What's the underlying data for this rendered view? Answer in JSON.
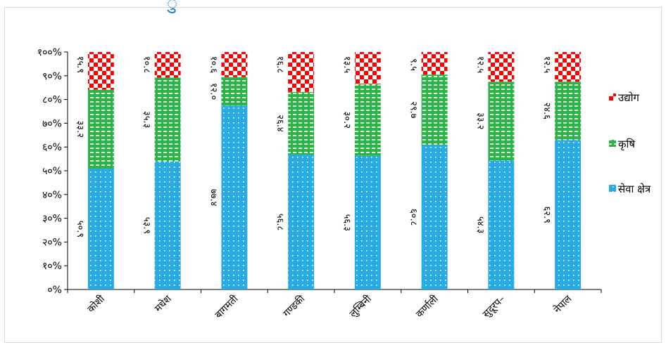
{
  "chart_data": {
    "type": "bar",
    "stacked": true,
    "percent": true,
    "categories": [
      "कोशी",
      "मधेश",
      "बागमती",
      "गण्डकी",
      "लुम्बिनी",
      "कर्णाली",
      "सुदूरप–",
      "नेपाल"
    ],
    "series": [
      {
        "name": "सेवा क्षेत्र",
        "values": [
          50.9,
          53.9,
          77.4,
          56.8,
          56.3,
          60.8,
          54.3,
          62.9
        ],
        "labels": [
          "५०.९",
          "५३.९",
          "७७.४",
          "५६.८",
          "५६.३",
          "६०.८",
          "५४.३",
          "६२.९"
        ],
        "color": "#29abe2"
      },
      {
        "name": "कृषि",
        "values": [
          33.2,
          35.3,
          12.0,
          26.4,
          30.2,
          29.7,
          33.2,
          24.6
        ],
        "labels": [
          "३३.२",
          "३५.३",
          "१२.०",
          "२६.४",
          "३०.२",
          "२९.७",
          "३३.२",
          "२४.६"
        ],
        "color": "#2db34a"
      },
      {
        "name": "उद्योग",
        "values": [
          15.9,
          10.8,
          10.6,
          16.8,
          13.5,
          9.5,
          12.5,
          12.5
        ],
        "labels": [
          "१५.९",
          "१०.८",
          "१०.६",
          "१६.८",
          "१३.५",
          "९.५",
          "१२.५",
          "१२.५"
        ],
        "color": "#ff0000"
      }
    ],
    "yticks": [
      "०%",
      "१०%",
      "२०%",
      "३०%",
      "४०%",
      "५०%",
      "६०%",
      "७०%",
      "८०%",
      "९०%",
      "१००%"
    ],
    "ylim": [
      0,
      100
    ],
    "legend_position": "right",
    "grid": false
  },
  "heading_fragment": "ु"
}
